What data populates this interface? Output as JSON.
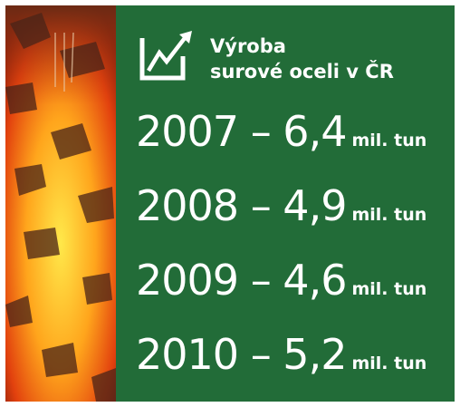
{
  "header": {
    "title_line1": "Výroba",
    "title_line2": "surové oceli v ČR"
  },
  "rows": [
    {
      "main": "2007 – 6,4",
      "unit": "mil. tun"
    },
    {
      "main": "2008 – 4,9",
      "unit": "mil. tun"
    },
    {
      "main": "2009 – 4,6",
      "unit": "mil. tun"
    },
    {
      "main": "2010 – 5,2",
      "unit": "mil. tun"
    }
  ]
}
